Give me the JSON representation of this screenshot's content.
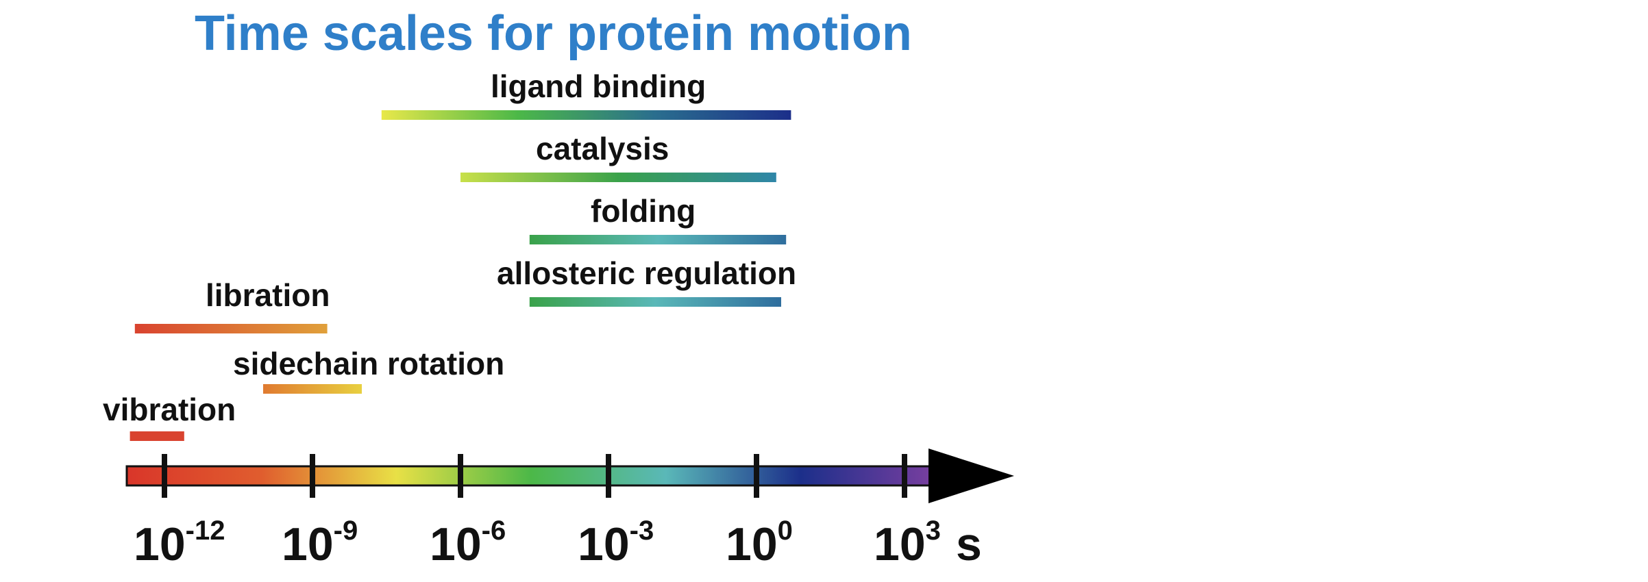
{
  "chart_data": {
    "type": "timeline-ranges",
    "title": "Time scales for protein motion",
    "x_axis": {
      "scale": "log10",
      "unit": "s",
      "ticks": [
        {
          "base": "10",
          "exp": "-12"
        },
        {
          "base": "10",
          "exp": "-9"
        },
        {
          "base": "10",
          "exp": "-6"
        },
        {
          "base": "10",
          "exp": "-3"
        },
        {
          "base": "10",
          "exp": "0"
        },
        {
          "base": "10",
          "exp": "3"
        }
      ],
      "tick_exponents": [
        -12,
        -9,
        -6,
        -3,
        0,
        3
      ]
    },
    "ranges": [
      {
        "label": "ligand binding",
        "from_exp": -7.6,
        "to_exp": 0.7,
        "colors": [
          "#e8e84a",
          "#4cb848",
          "#2a6e8e",
          "#1c2f8a"
        ]
      },
      {
        "label": "catalysis",
        "from_exp": -6.0,
        "to_exp": 0.4,
        "colors": [
          "#c8e04a",
          "#3aa24a",
          "#2f86a8"
        ]
      },
      {
        "label": "folding",
        "from_exp": -4.6,
        "to_exp": 0.6,
        "colors": [
          "#3aa24a",
          "#5ab8b8",
          "#2f6e9e"
        ]
      },
      {
        "label": "allosteric regulation",
        "from_exp": -4.6,
        "to_exp": 0.5,
        "colors": [
          "#3aa24a",
          "#5ab8b8",
          "#2f6e9e"
        ]
      },
      {
        "label": "libration",
        "from_exp": -12.6,
        "to_exp": -8.7,
        "colors": [
          "#d9432f",
          "#e0a03a"
        ]
      },
      {
        "label": "sidechain rotation",
        "from_exp": -10.0,
        "to_exp": -8.0,
        "colors": [
          "#e07a30",
          "#e8d040"
        ]
      },
      {
        "label": "vibration",
        "from_exp": -12.7,
        "to_exp": -11.6,
        "colors": [
          "#d9432f",
          "#d9432f"
        ]
      }
    ],
    "colors": {
      "title": "#2f7fc9",
      "text": "#111111",
      "axis_gradient": [
        "#d9362a",
        "#e05d2e",
        "#e8e046",
        "#4cb848",
        "#5ab8b8",
        "#1c2f8a",
        "#7a3fa0"
      ]
    }
  }
}
